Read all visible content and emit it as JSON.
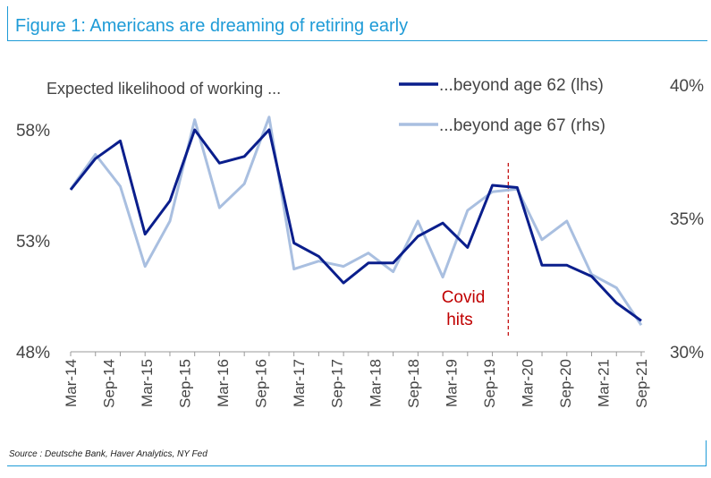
{
  "figure": {
    "title": "Figure 1: Americans are dreaming of retiring early",
    "source": "Source : Deutsche Bank, Haver Analytics, NY Fed"
  },
  "colors": {
    "frame": "#1e9bd7",
    "series_lhs": "#0a1e8c",
    "series_rhs": "#a9bfe0",
    "annotation": "#c00000"
  },
  "chart_data": {
    "type": "line",
    "title": "Expected likelihood of working ...",
    "x": [
      "Mar-14",
      "Jul-14",
      "Nov-14",
      "Mar-15",
      "Jul-15",
      "Nov-15",
      "Mar-16",
      "Jul-16",
      "Nov-16",
      "Mar-17",
      "Jul-17",
      "Nov-17",
      "Mar-18",
      "Jul-18",
      "Nov-18",
      "Mar-19",
      "Jul-19",
      "Nov-19",
      "Mar-20",
      "Jul-20",
      "Nov-20",
      "Mar-21",
      "Jul-21",
      "Nov-21"
    ],
    "x_tick_labels": [
      "Mar-14",
      "Sep-14",
      "Mar-15",
      "Sep-15",
      "Mar-16",
      "Sep-16",
      "Mar-17",
      "Sep-17",
      "Mar-18",
      "Sep-18",
      "Mar-19",
      "Sep-19",
      "Mar-20",
      "Sep-20",
      "Mar-21",
      "Sep-21"
    ],
    "y_left": {
      "range": [
        48,
        58
      ],
      "ticks": [
        "48%",
        "53%",
        "58%"
      ]
    },
    "y_right": {
      "range": [
        30,
        40
      ],
      "ticks": [
        "30%",
        "35%",
        "40%"
      ]
    },
    "series": [
      {
        "name": "...beyond age 62 (lhs)",
        "axis": "left",
        "values": [
          55.3,
          56.7,
          57.5,
          53.3,
          54.8,
          58.0,
          56.5,
          56.8,
          58.0,
          52.9,
          52.3,
          51.1,
          52.0,
          52.0,
          53.2,
          53.8,
          52.7,
          55.5,
          55.4,
          51.9,
          51.9,
          51.4,
          50.2,
          49.4
        ]
      },
      {
        "name": "...beyond age 67 (rhs)",
        "axis": "right",
        "values": [
          36.1,
          37.4,
          36.2,
          33.2,
          34.9,
          38.7,
          35.4,
          36.3,
          38.8,
          33.1,
          33.4,
          33.2,
          33.7,
          33.0,
          34.9,
          32.8,
          35.3,
          36.0,
          36.1,
          34.2,
          34.9,
          32.9,
          32.4,
          31.0
        ]
      }
    ],
    "annotation": {
      "text_line1": "Covid",
      "text_line2": "hits",
      "at": "Mar-20"
    }
  }
}
